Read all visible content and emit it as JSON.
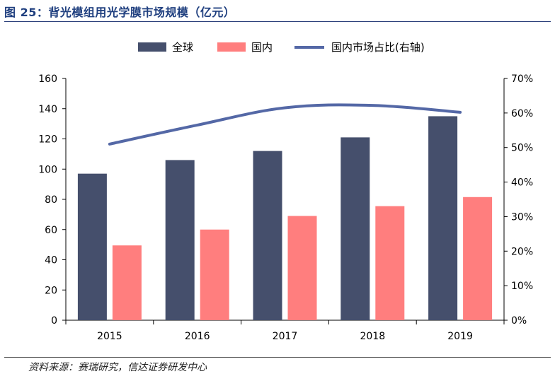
{
  "figure": {
    "title": "图 25：背光模组用光学膜市场规模（亿元）",
    "source": "资料来源：赛瑞研究，信达证券研发中心"
  },
  "colors": {
    "global": "#454f6c",
    "domestic": "#ff7e7e",
    "share_line": "#5468a6",
    "title": "#1f3f7f"
  },
  "chart_data": {
    "type": "bar",
    "categories": [
      "2015",
      "2016",
      "2017",
      "2018",
      "2019"
    ],
    "series": [
      {
        "name": "全球",
        "type": "bar",
        "axis": "left",
        "values": [
          97,
          106,
          112,
          121,
          135
        ]
      },
      {
        "name": "国内",
        "type": "bar",
        "axis": "left",
        "values": [
          49.5,
          60,
          69,
          75.5,
          81.5
        ]
      },
      {
        "name": "国内市场占比(右轴)",
        "type": "line",
        "axis": "right",
        "values": [
          51,
          56.5,
          61.5,
          62.2,
          60.2
        ]
      }
    ],
    "ylim_left": [
      0,
      160
    ],
    "yticks_left": [
      "0",
      "20",
      "40",
      "60",
      "80",
      "100",
      "120",
      "140",
      "160"
    ],
    "ylim_right": [
      0,
      70
    ],
    "yticks_right": [
      "0%",
      "10%",
      "20%",
      "30%",
      "40%",
      "50%",
      "60%",
      "70%"
    ],
    "legend_position": "top",
    "grid": false
  }
}
